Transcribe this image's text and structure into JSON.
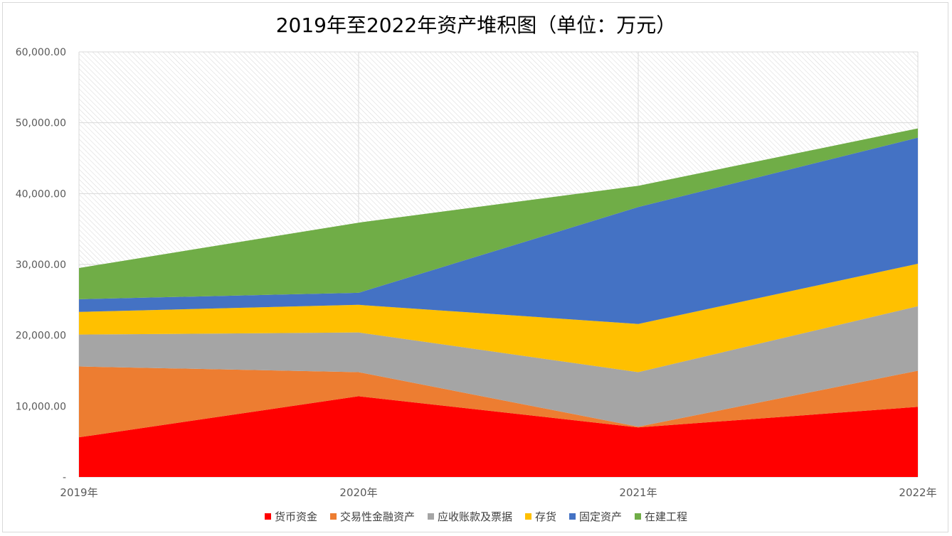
{
  "chart_data": {
    "type": "area",
    "stacked": true,
    "title": "2019年至2022年资产堆积图（单位：万元）",
    "xlabel": "",
    "ylabel": "",
    "categories": [
      "2019年",
      "2020年",
      "2021年",
      "2022年"
    ],
    "ylim": [
      0,
      60000
    ],
    "yticks": [
      "-",
      "10,000.00",
      "20,000.00",
      "30,000.00",
      "40,000.00",
      "50,000.00",
      "60,000.00"
    ],
    "grid": true,
    "legend_position": "bottom",
    "series": [
      {
        "name": "货币资金",
        "color": "#ff0000",
        "values": [
          5600,
          11400,
          7000,
          9900
        ]
      },
      {
        "name": "交易性金融资产",
        "color": "#ed7d31",
        "values": [
          10000,
          3400,
          100,
          5100
        ]
      },
      {
        "name": "应收账款及票据",
        "color": "#a5a5a5",
        "values": [
          4500,
          5600,
          7700,
          9100
        ]
      },
      {
        "name": "存货",
        "color": "#ffc000",
        "values": [
          3200,
          3900,
          6800,
          6000
        ]
      },
      {
        "name": "固定资产",
        "color": "#4472c4",
        "values": [
          1800,
          1700,
          16500,
          17800
        ]
      },
      {
        "name": "在建工程",
        "color": "#70ad47",
        "values": [
          4400,
          9900,
          3000,
          1300
        ]
      }
    ]
  }
}
